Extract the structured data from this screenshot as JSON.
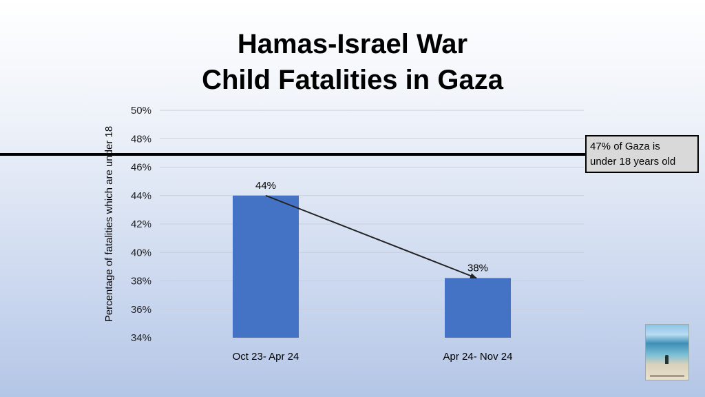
{
  "title": {
    "line1": "Hamas-Israel War",
    "line2": "Child Fatalities in Gaza"
  },
  "callout": {
    "line1": "47% of Gaza is",
    "line2": "under 18 years old"
  },
  "chart_data": {
    "type": "bar",
    "categories": [
      "Oct 23- Apr 24",
      "Apr 24- Nov 24"
    ],
    "values": [
      44,
      38.2
    ],
    "data_labels": [
      "44%",
      "38%"
    ],
    "ylabel": "Percentage of fatalities which are under 18",
    "ylim": [
      34,
      50
    ],
    "yticks": [
      "34%",
      "36%",
      "38%",
      "40%",
      "42%",
      "44%",
      "46%",
      "48%",
      "50%"
    ],
    "ytick_values": [
      34,
      36,
      38,
      40,
      42,
      44,
      46,
      48,
      50
    ],
    "reference_line": 46.9,
    "trend_arrow": true,
    "grid": true,
    "bar_color": "#4472c4"
  }
}
